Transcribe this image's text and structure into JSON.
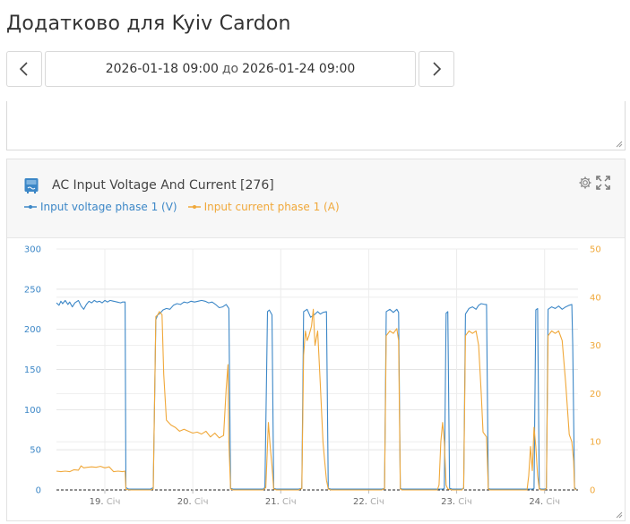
{
  "page": {
    "title": "Додатково для Kyiv Cardon"
  },
  "date_nav": {
    "start": "2026-01-18 09:00",
    "separator": "до",
    "end": "2026-01-24 09:00"
  },
  "widget": {
    "title": "AC Input Voltage And Current [276]",
    "icon": "inverter-icon",
    "legend": [
      {
        "name": "Input voltage phase 1 (V)",
        "color": "#3c87c7"
      },
      {
        "name": "Input current phase 1 (A)",
        "color": "#f0a83a"
      }
    ]
  },
  "chart_data": {
    "type": "line",
    "title": "AC Input Voltage And Current [276]",
    "x_ticks": [
      {
        "x": 19,
        "label": "19.",
        "sub": "Січ"
      },
      {
        "x": 20,
        "label": "20.",
        "sub": "Січ"
      },
      {
        "x": 21,
        "label": "21.",
        "sub": "Січ"
      },
      {
        "x": 22,
        "label": "22.",
        "sub": "Січ"
      },
      {
        "x": 23,
        "label": "23.",
        "sub": "Січ"
      },
      {
        "x": 24,
        "label": "24.",
        "sub": "Січ"
      }
    ],
    "xlim": [
      18.45,
      24.38
    ],
    "y_left": {
      "ticks": [
        0,
        50,
        100,
        150,
        200,
        250,
        300
      ],
      "lim": [
        0,
        300
      ],
      "color": "#3c87c7"
    },
    "y_right": {
      "ticks": [
        0,
        10,
        20,
        30,
        40,
        50
      ],
      "lim": [
        0,
        50
      ],
      "color": "#f0a83a"
    },
    "grid": true,
    "series": [
      {
        "name": "Input voltage phase 1 (V)",
        "axis": "left",
        "color": "#3c87c7",
        "points": [
          [
            18.45,
            233
          ],
          [
            18.48,
            230
          ],
          [
            18.5,
            235
          ],
          [
            18.52,
            232
          ],
          [
            18.55,
            236
          ],
          [
            18.58,
            231
          ],
          [
            18.6,
            234
          ],
          [
            18.63,
            228
          ],
          [
            18.66,
            233
          ],
          [
            18.7,
            236
          ],
          [
            18.73,
            229
          ],
          [
            18.76,
            225
          ],
          [
            18.79,
            231
          ],
          [
            18.82,
            235
          ],
          [
            18.85,
            233
          ],
          [
            18.88,
            236
          ],
          [
            18.91,
            234
          ],
          [
            18.94,
            235
          ],
          [
            18.97,
            233
          ],
          [
            19.0,
            236
          ],
          [
            19.03,
            234
          ],
          [
            19.06,
            236
          ],
          [
            19.1,
            235
          ],
          [
            19.14,
            234
          ],
          [
            19.18,
            233
          ],
          [
            19.2,
            234
          ],
          [
            19.23,
            234
          ],
          [
            19.24,
            3
          ],
          [
            19.27,
            1
          ],
          [
            19.4,
            1
          ],
          [
            19.52,
            1
          ],
          [
            19.55,
            3
          ],
          [
            19.58,
            212
          ],
          [
            19.6,
            218
          ],
          [
            19.63,
            220
          ],
          [
            19.66,
            224
          ],
          [
            19.7,
            226
          ],
          [
            19.74,
            225
          ],
          [
            19.78,
            230
          ],
          [
            19.82,
            232
          ],
          [
            19.86,
            231
          ],
          [
            19.9,
            234
          ],
          [
            19.94,
            233
          ],
          [
            19.98,
            235
          ],
          [
            20.02,
            234
          ],
          [
            20.06,
            235
          ],
          [
            20.1,
            236
          ],
          [
            20.14,
            235
          ],
          [
            20.18,
            233
          ],
          [
            20.22,
            234
          ],
          [
            20.26,
            231
          ],
          [
            20.3,
            227
          ],
          [
            20.34,
            228
          ],
          [
            20.38,
            231
          ],
          [
            20.41,
            226
          ],
          [
            20.43,
            2
          ],
          [
            20.46,
            1
          ],
          [
            20.8,
            1
          ],
          [
            20.82,
            3
          ],
          [
            20.85,
            222
          ],
          [
            20.87,
            224
          ],
          [
            20.9,
            218
          ],
          [
            20.92,
            2
          ],
          [
            20.95,
            1
          ],
          [
            21.2,
            1
          ],
          [
            21.24,
            2
          ],
          [
            21.26,
            222
          ],
          [
            21.3,
            225
          ],
          [
            21.34,
            215
          ],
          [
            21.38,
            218
          ],
          [
            21.42,
            222
          ],
          [
            21.45,
            219
          ],
          [
            21.48,
            221
          ],
          [
            21.52,
            222
          ],
          [
            21.54,
            2
          ],
          [
            21.57,
            1
          ],
          [
            22.15,
            1
          ],
          [
            22.18,
            2
          ],
          [
            22.2,
            222
          ],
          [
            22.24,
            225
          ],
          [
            22.28,
            221
          ],
          [
            22.32,
            225
          ],
          [
            22.34,
            221
          ],
          [
            22.36,
            2
          ],
          [
            22.38,
            1
          ],
          [
            22.84,
            1
          ],
          [
            22.86,
            2
          ],
          [
            22.88,
            220
          ],
          [
            22.9,
            222
          ],
          [
            22.92,
            2
          ],
          [
            22.95,
            1
          ],
          [
            23.06,
            1
          ],
          [
            23.08,
            2
          ],
          [
            23.1,
            219
          ],
          [
            23.14,
            226
          ],
          [
            23.18,
            228
          ],
          [
            23.22,
            225
          ],
          [
            23.25,
            230
          ],
          [
            23.28,
            232
          ],
          [
            23.32,
            231
          ],
          [
            23.34,
            231
          ],
          [
            23.36,
            2
          ],
          [
            23.38,
            1
          ],
          [
            23.86,
            1
          ],
          [
            23.88,
            2
          ],
          [
            23.9,
            224
          ],
          [
            23.92,
            226
          ],
          [
            23.94,
            2
          ],
          [
            23.96,
            1
          ],
          [
            24.0,
            1
          ],
          [
            24.02,
            2
          ],
          [
            24.04,
            225
          ],
          [
            24.08,
            228
          ],
          [
            24.12,
            226
          ],
          [
            24.16,
            229
          ],
          [
            24.2,
            225
          ],
          [
            24.24,
            228
          ],
          [
            24.28,
            230
          ],
          [
            24.31,
            231
          ],
          [
            24.32,
            180
          ],
          [
            24.34,
            3
          ],
          [
            24.36,
            1
          ]
        ]
      },
      {
        "name": "Input current phase 1 (A)",
        "axis": "right",
        "color": "#f0a83a",
        "points": [
          [
            18.45,
            3.9
          ],
          [
            18.5,
            3.8
          ],
          [
            18.55,
            3.9
          ],
          [
            18.6,
            3.8
          ],
          [
            18.65,
            4.2
          ],
          [
            18.7,
            4.1
          ],
          [
            18.73,
            5.0
          ],
          [
            18.76,
            4.6
          ],
          [
            18.8,
            4.7
          ],
          [
            18.85,
            4.8
          ],
          [
            18.9,
            4.7
          ],
          [
            18.95,
            4.9
          ],
          [
            19.0,
            4.6
          ],
          [
            19.05,
            4.8
          ],
          [
            19.1,
            3.8
          ],
          [
            19.15,
            3.9
          ],
          [
            19.2,
            3.8
          ],
          [
            19.23,
            3.9
          ],
          [
            19.24,
            0.1
          ],
          [
            19.3,
            0
          ],
          [
            19.52,
            0
          ],
          [
            19.55,
            0.2
          ],
          [
            19.58,
            36.0
          ],
          [
            19.6,
            36.3
          ],
          [
            19.62,
            37.0
          ],
          [
            19.65,
            36.4
          ],
          [
            19.67,
            24.0
          ],
          [
            19.7,
            14.5
          ],
          [
            19.75,
            13.5
          ],
          [
            19.8,
            13.0
          ],
          [
            19.85,
            12.2
          ],
          [
            19.9,
            12.6
          ],
          [
            19.95,
            12.2
          ],
          [
            20.0,
            11.8
          ],
          [
            20.05,
            12.0
          ],
          [
            20.1,
            11.6
          ],
          [
            20.15,
            12.2
          ],
          [
            20.2,
            11.0
          ],
          [
            20.25,
            11.8
          ],
          [
            20.3,
            10.8
          ],
          [
            20.35,
            11.3
          ],
          [
            20.38,
            21.0
          ],
          [
            20.4,
            26.0
          ],
          [
            20.41,
            10.0
          ],
          [
            20.43,
            0.2
          ],
          [
            20.46,
            0
          ],
          [
            20.8,
            0
          ],
          [
            20.83,
            0.5
          ],
          [
            20.86,
            14.0
          ],
          [
            20.88,
            9.0
          ],
          [
            20.9,
            5.0
          ],
          [
            20.92,
            0.2
          ],
          [
            20.95,
            0
          ],
          [
            21.2,
            0
          ],
          [
            21.24,
            0.3
          ],
          [
            21.26,
            28.0
          ],
          [
            21.28,
            33.0
          ],
          [
            21.3,
            31.0
          ],
          [
            21.32,
            32.0
          ],
          [
            21.35,
            34.0
          ],
          [
            21.37,
            37.5
          ],
          [
            21.39,
            30.0
          ],
          [
            21.42,
            33.0
          ],
          [
            21.45,
            22.0
          ],
          [
            21.48,
            10.0
          ],
          [
            21.5,
            6.0
          ],
          [
            21.52,
            2.0
          ],
          [
            21.54,
            0.2
          ],
          [
            21.57,
            0
          ],
          [
            22.15,
            0
          ],
          [
            22.18,
            0.3
          ],
          [
            22.2,
            32.0
          ],
          [
            22.24,
            33.0
          ],
          [
            22.28,
            32.5
          ],
          [
            22.32,
            33.5
          ],
          [
            22.34,
            31.0
          ],
          [
            22.36,
            0.2
          ],
          [
            22.38,
            0
          ],
          [
            22.78,
            0
          ],
          [
            22.8,
            1.0
          ],
          [
            22.82,
            10.0
          ],
          [
            22.84,
            14.0
          ],
          [
            22.86,
            10.0
          ],
          [
            22.88,
            1.0
          ],
          [
            22.9,
            0.2
          ],
          [
            22.95,
            0
          ],
          [
            23.06,
            0
          ],
          [
            23.08,
            0.5
          ],
          [
            23.1,
            32.0
          ],
          [
            23.14,
            33.0
          ],
          [
            23.18,
            32.5
          ],
          [
            23.22,
            33.0
          ],
          [
            23.25,
            30.0
          ],
          [
            23.28,
            20.0
          ],
          [
            23.3,
            12.0
          ],
          [
            23.34,
            11.0
          ],
          [
            23.36,
            0.2
          ],
          [
            23.38,
            0
          ],
          [
            23.8,
            0
          ],
          [
            23.82,
            3.0
          ],
          [
            23.84,
            9.0
          ],
          [
            23.86,
            4.0
          ],
          [
            23.88,
            13.0
          ],
          [
            23.9,
            9.0
          ],
          [
            23.92,
            3.0
          ],
          [
            23.94,
            0.2
          ],
          [
            23.96,
            0
          ],
          [
            24.0,
            0
          ],
          [
            24.02,
            0.3
          ],
          [
            24.04,
            32.0
          ],
          [
            24.08,
            33.0
          ],
          [
            24.12,
            32.5
          ],
          [
            24.16,
            33.0
          ],
          [
            24.2,
            31.0
          ],
          [
            24.24,
            22.0
          ],
          [
            24.28,
            11.5
          ],
          [
            24.31,
            10.0
          ],
          [
            24.33,
            6.0
          ],
          [
            24.34,
            0.3
          ],
          [
            24.36,
            0
          ]
        ]
      }
    ]
  }
}
